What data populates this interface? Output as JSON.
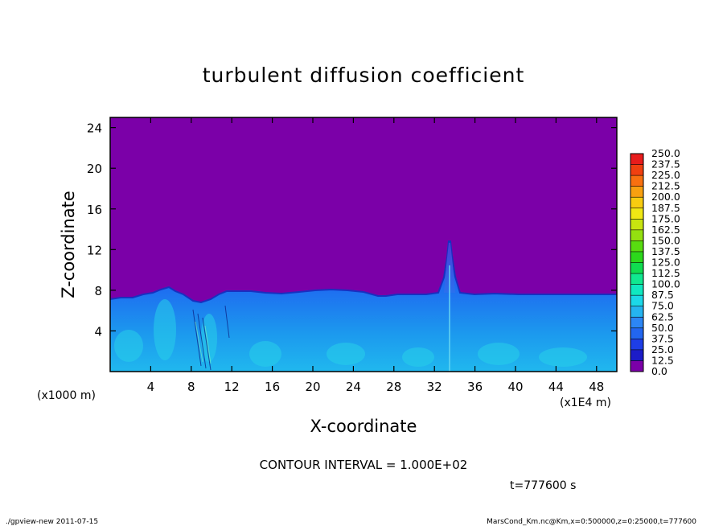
{
  "chart_data": {
    "type": "heatmap",
    "title": "turbulent diffusion coefficient",
    "xlabel": "X-coordinate",
    "ylabel": "Z-coordinate",
    "x_unit_left": "(x1000 m)",
    "x_unit_right": "(x1E4 m)",
    "xlim": [
      0,
      50
    ],
    "ylim": [
      0,
      25
    ],
    "x_ticks": [
      4,
      8,
      12,
      16,
      20,
      24,
      28,
      32,
      36,
      40,
      44,
      48
    ],
    "y_ticks": [
      4,
      8,
      12,
      16,
      20,
      24
    ],
    "colorbar": {
      "levels": [
        "0.0",
        "12.5",
        "25.0",
        "37.5",
        "50.0",
        "62.5",
        "75.0",
        "87.5",
        "100.0",
        "112.5",
        "125.0",
        "137.5",
        "150.0",
        "162.5",
        "175.0",
        "187.5",
        "200.0",
        "212.5",
        "225.0",
        "237.5",
        "250.0"
      ],
      "colors": [
        "#7b00a8",
        "#1c1cc8",
        "#1e3ee6",
        "#2266f0",
        "#2c86f4",
        "#25b4f0",
        "#1cd8e8",
        "#10e8c0",
        "#10e890",
        "#10dc50",
        "#2cd81c",
        "#58dc10",
        "#94e010",
        "#c8e410",
        "#f0e814",
        "#f8cc10",
        "#f8a010",
        "#f87010",
        "#f04010",
        "#e81c1c",
        "#f08080"
      ]
    },
    "field_description_values": {
      "background_value": 0.0,
      "boundary_layer_top_z": 7.5,
      "plume_x": 33.5,
      "plume_top_z": 12.8
    }
  },
  "contour_interval": "CONTOUR INTERVAL = 1.000E+02",
  "time_label": "t=777600 s",
  "footer_left": "./gpview-new  2011-07-15",
  "footer_right": "MarsCond_Km.nc@Km,x=0:500000,z=0:25000,t=777600"
}
